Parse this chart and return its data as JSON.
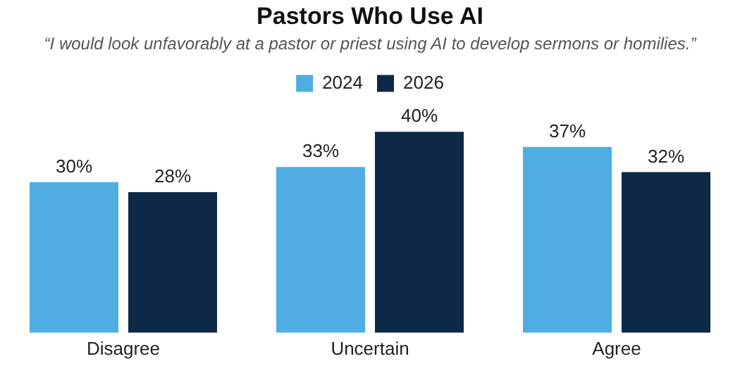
{
  "chart_data": {
    "type": "bar",
    "title": "Pastors Who Use AI",
    "subtitle": "“I would look unfavorably at a pastor or priest using AI to develop sermons or homilies.”",
    "categories": [
      "Disagree",
      "Uncertain",
      "Agree"
    ],
    "series": [
      {
        "name": "2024",
        "color": "#4fade3",
        "values": [
          30,
          33,
          37
        ],
        "value_labels": [
          "30%",
          "33%",
          "37%"
        ]
      },
      {
        "name": "2026",
        "color": "#0c2a48",
        "values": [
          28,
          40,
          32
        ],
        "value_labels": [
          "28%",
          "40%",
          "32%"
        ]
      }
    ],
    "legend": "top",
    "grid": false
  }
}
